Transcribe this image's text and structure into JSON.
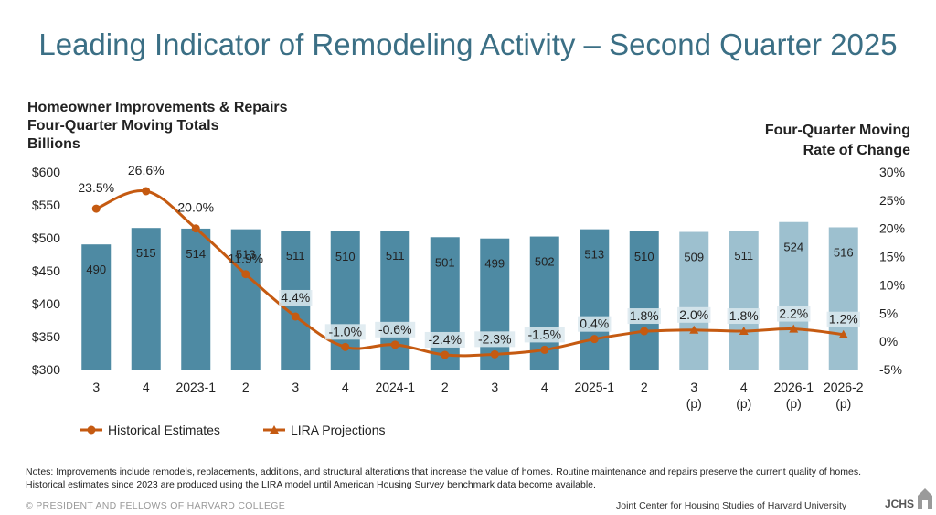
{
  "title": "Leading Indicator of Remodeling Activity – Second Quarter 2025",
  "left_heading": [
    "Homeowner Improvements & Repairs",
    "Four-Quarter Moving Totals",
    "Billions"
  ],
  "right_heading": [
    "Four-Quarter Moving",
    "Rate of Change"
  ],
  "notes": "Notes: Improvements include remodels, replacements, additions, and structural alterations that increase the value of homes. Routine maintenance and repairs preserve the current quality of homes. Historical estimates since 2023 are produced using the LIRA model until American Housing Survey benchmark data become available.",
  "footer_left": "© PRESIDENT AND FELLOWS OF HARVARD COLLEGE",
  "footer_right": "Joint Center for Housing Studies of Harvard University",
  "logo_text": "JCHS",
  "colors": {
    "bar_historical": "#4e8aa3",
    "bar_projection": "#9dc0cf",
    "line": "#c55a11",
    "label_bg": "#dce9ef"
  },
  "chart_data": {
    "type": "bar+line",
    "categories": [
      [
        "3"
      ],
      [
        "4"
      ],
      [
        "2023-1"
      ],
      [
        "2"
      ],
      [
        "3"
      ],
      [
        "4"
      ],
      [
        "2024-1"
      ],
      [
        "2"
      ],
      [
        "3"
      ],
      [
        "4"
      ],
      [
        "2025-1"
      ],
      [
        "2"
      ],
      [
        "3",
        "(p)"
      ],
      [
        "4",
        "(p)"
      ],
      [
        "2026-1",
        "(p)"
      ],
      [
        "2026-2",
        "(p)"
      ]
    ],
    "bars": {
      "values": [
        490,
        515,
        514,
        513,
        511,
        510,
        511,
        501,
        499,
        502,
        513,
        510,
        509,
        511,
        524,
        516
      ],
      "projection_from_index": 12
    },
    "line": {
      "values": [
        23.5,
        26.6,
        20.0,
        11.9,
        4.4,
        -1.0,
        -0.6,
        -2.4,
        -2.3,
        -1.5,
        0.4,
        1.8,
        2.0,
        1.8,
        2.2,
        1.2
      ],
      "labels": [
        "23.5%",
        "26.6%",
        "20.0%",
        "11.9%",
        "4.4%",
        "-1.0%",
        "-0.6%",
        "-2.4%",
        "-2.3%",
        "-1.5%",
        "0.4%",
        "1.8%",
        "2.0%",
        "1.8%",
        "2.2%",
        "1.2%"
      ],
      "projection_from_index": 12
    },
    "y_left": {
      "min": 300,
      "max": 600,
      "ticks": [
        "$300",
        "$350",
        "$400",
        "$450",
        "$500",
        "$550",
        "$600"
      ]
    },
    "y_right": {
      "min": -5,
      "max": 30,
      "ticks": [
        "-5%",
        "0%",
        "5%",
        "10%",
        "15%",
        "20%",
        "25%",
        "30%"
      ]
    },
    "legend": [
      "Historical Estimates",
      "LIRA Projections"
    ],
    "grid": false
  }
}
